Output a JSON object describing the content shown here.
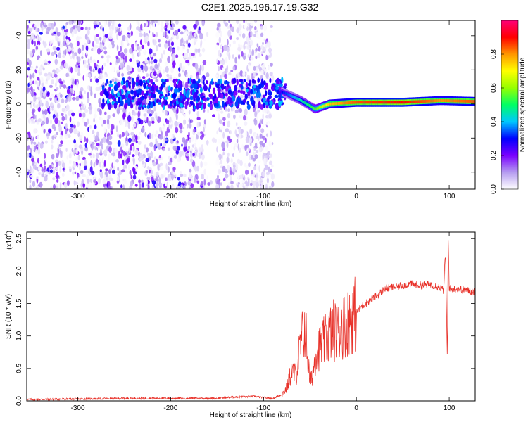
{
  "title": "C2E1.2025.196.17.19.G32",
  "chart_data": [
    {
      "type": "heatmap",
      "description_series": "Spectrogram",
      "xlabel": "Height of straight line (km)",
      "ylabel": "Frequency (Hz)",
      "xlim": [
        -355,
        128
      ],
      "ylim": [
        -50,
        49
      ],
      "xticks": [
        -300,
        -200,
        -100,
        0,
        100
      ],
      "yticks": [
        -40,
        -20,
        0,
        20,
        40
      ],
      "colorbar": {
        "label": "Normalized spectral amplitude",
        "ticks": [
          0.0,
          0.2,
          0.4,
          0.6,
          0.8
        ],
        "range": [
          0,
          1
        ],
        "colormap": [
          "#ffffff",
          "#b59cf0",
          "#7a00ff",
          "#0000ff",
          "#00c8ff",
          "#00ff64",
          "#96ff00",
          "#ffff00",
          "#ff9600",
          "#ff0000",
          "#ff0078"
        ]
      },
      "features": {
        "noise_band_x": [
          -355,
          -90
        ],
        "gap_x": [
          -162,
          -150
        ],
        "signal_track": [
          {
            "x": -80,
            "freq": 7,
            "amplitude": 0.3
          },
          {
            "x": -60,
            "freq": 2,
            "amplitude": 0.45
          },
          {
            "x": -45,
            "freq": -3,
            "amplitude": 0.55
          },
          {
            "x": -30,
            "freq": 0,
            "amplitude": 0.75
          },
          {
            "x": 0,
            "freq": 1,
            "amplitude": 0.85
          },
          {
            "x": 50,
            "freq": 1,
            "amplitude": 0.9
          },
          {
            "x": 90,
            "freq": 2,
            "amplitude": 0.8
          },
          {
            "x": 128,
            "freq": 1.5,
            "amplitude": 0.85
          }
        ]
      }
    },
    {
      "type": "line",
      "xlabel": "Height of straight line (km)",
      "ylabel": "SNR (10 * v/v)",
      "yscale_label": "(x10",
      "yscale_exponent": "4",
      "xlim": [
        -355,
        128
      ],
      "ylim": [
        0,
        2.6
      ],
      "xticks": [
        -300,
        -200,
        -100,
        0,
        100
      ],
      "yticks": [
        "0.0",
        "0.5",
        "1.0",
        "1.5",
        "2.0",
        "2.5"
      ],
      "color": "#e8322a",
      "series": [
        {
          "x": [
            -355,
            -300,
            -250,
            -200,
            -150,
            -130,
            -110,
            -100,
            -90,
            -80,
            -75,
            -70,
            -65,
            -62,
            -58,
            -55,
            -52,
            -50,
            -48,
            -45,
            -42,
            -40,
            -35,
            -30,
            -25,
            -20,
            -15,
            -10,
            -5,
            0,
            5,
            10,
            15,
            20,
            25,
            30,
            40,
            50,
            60,
            70,
            80,
            90,
            94,
            96,
            98,
            99,
            100,
            102,
            105,
            110,
            120,
            128
          ],
          "y": [
            0.02,
            0.03,
            0.04,
            0.04,
            0.04,
            0.06,
            0.07,
            0.05,
            0.04,
            0.1,
            0.2,
            0.45,
            0.4,
            0.7,
            1.0,
            1.15,
            0.6,
            0.3,
            0.35,
            0.6,
            0.9,
            0.8,
            0.9,
            1.0,
            1.1,
            1.05,
            1.15,
            1.2,
            1.3,
            1.35,
            1.45,
            1.5,
            1.55,
            1.6,
            1.65,
            1.72,
            1.75,
            1.78,
            1.8,
            1.78,
            1.8,
            1.75,
            1.7,
            2.3,
            0.6,
            2.55,
            1.75,
            1.72,
            1.72,
            1.73,
            1.7,
            1.68
          ]
        }
      ]
    }
  ]
}
